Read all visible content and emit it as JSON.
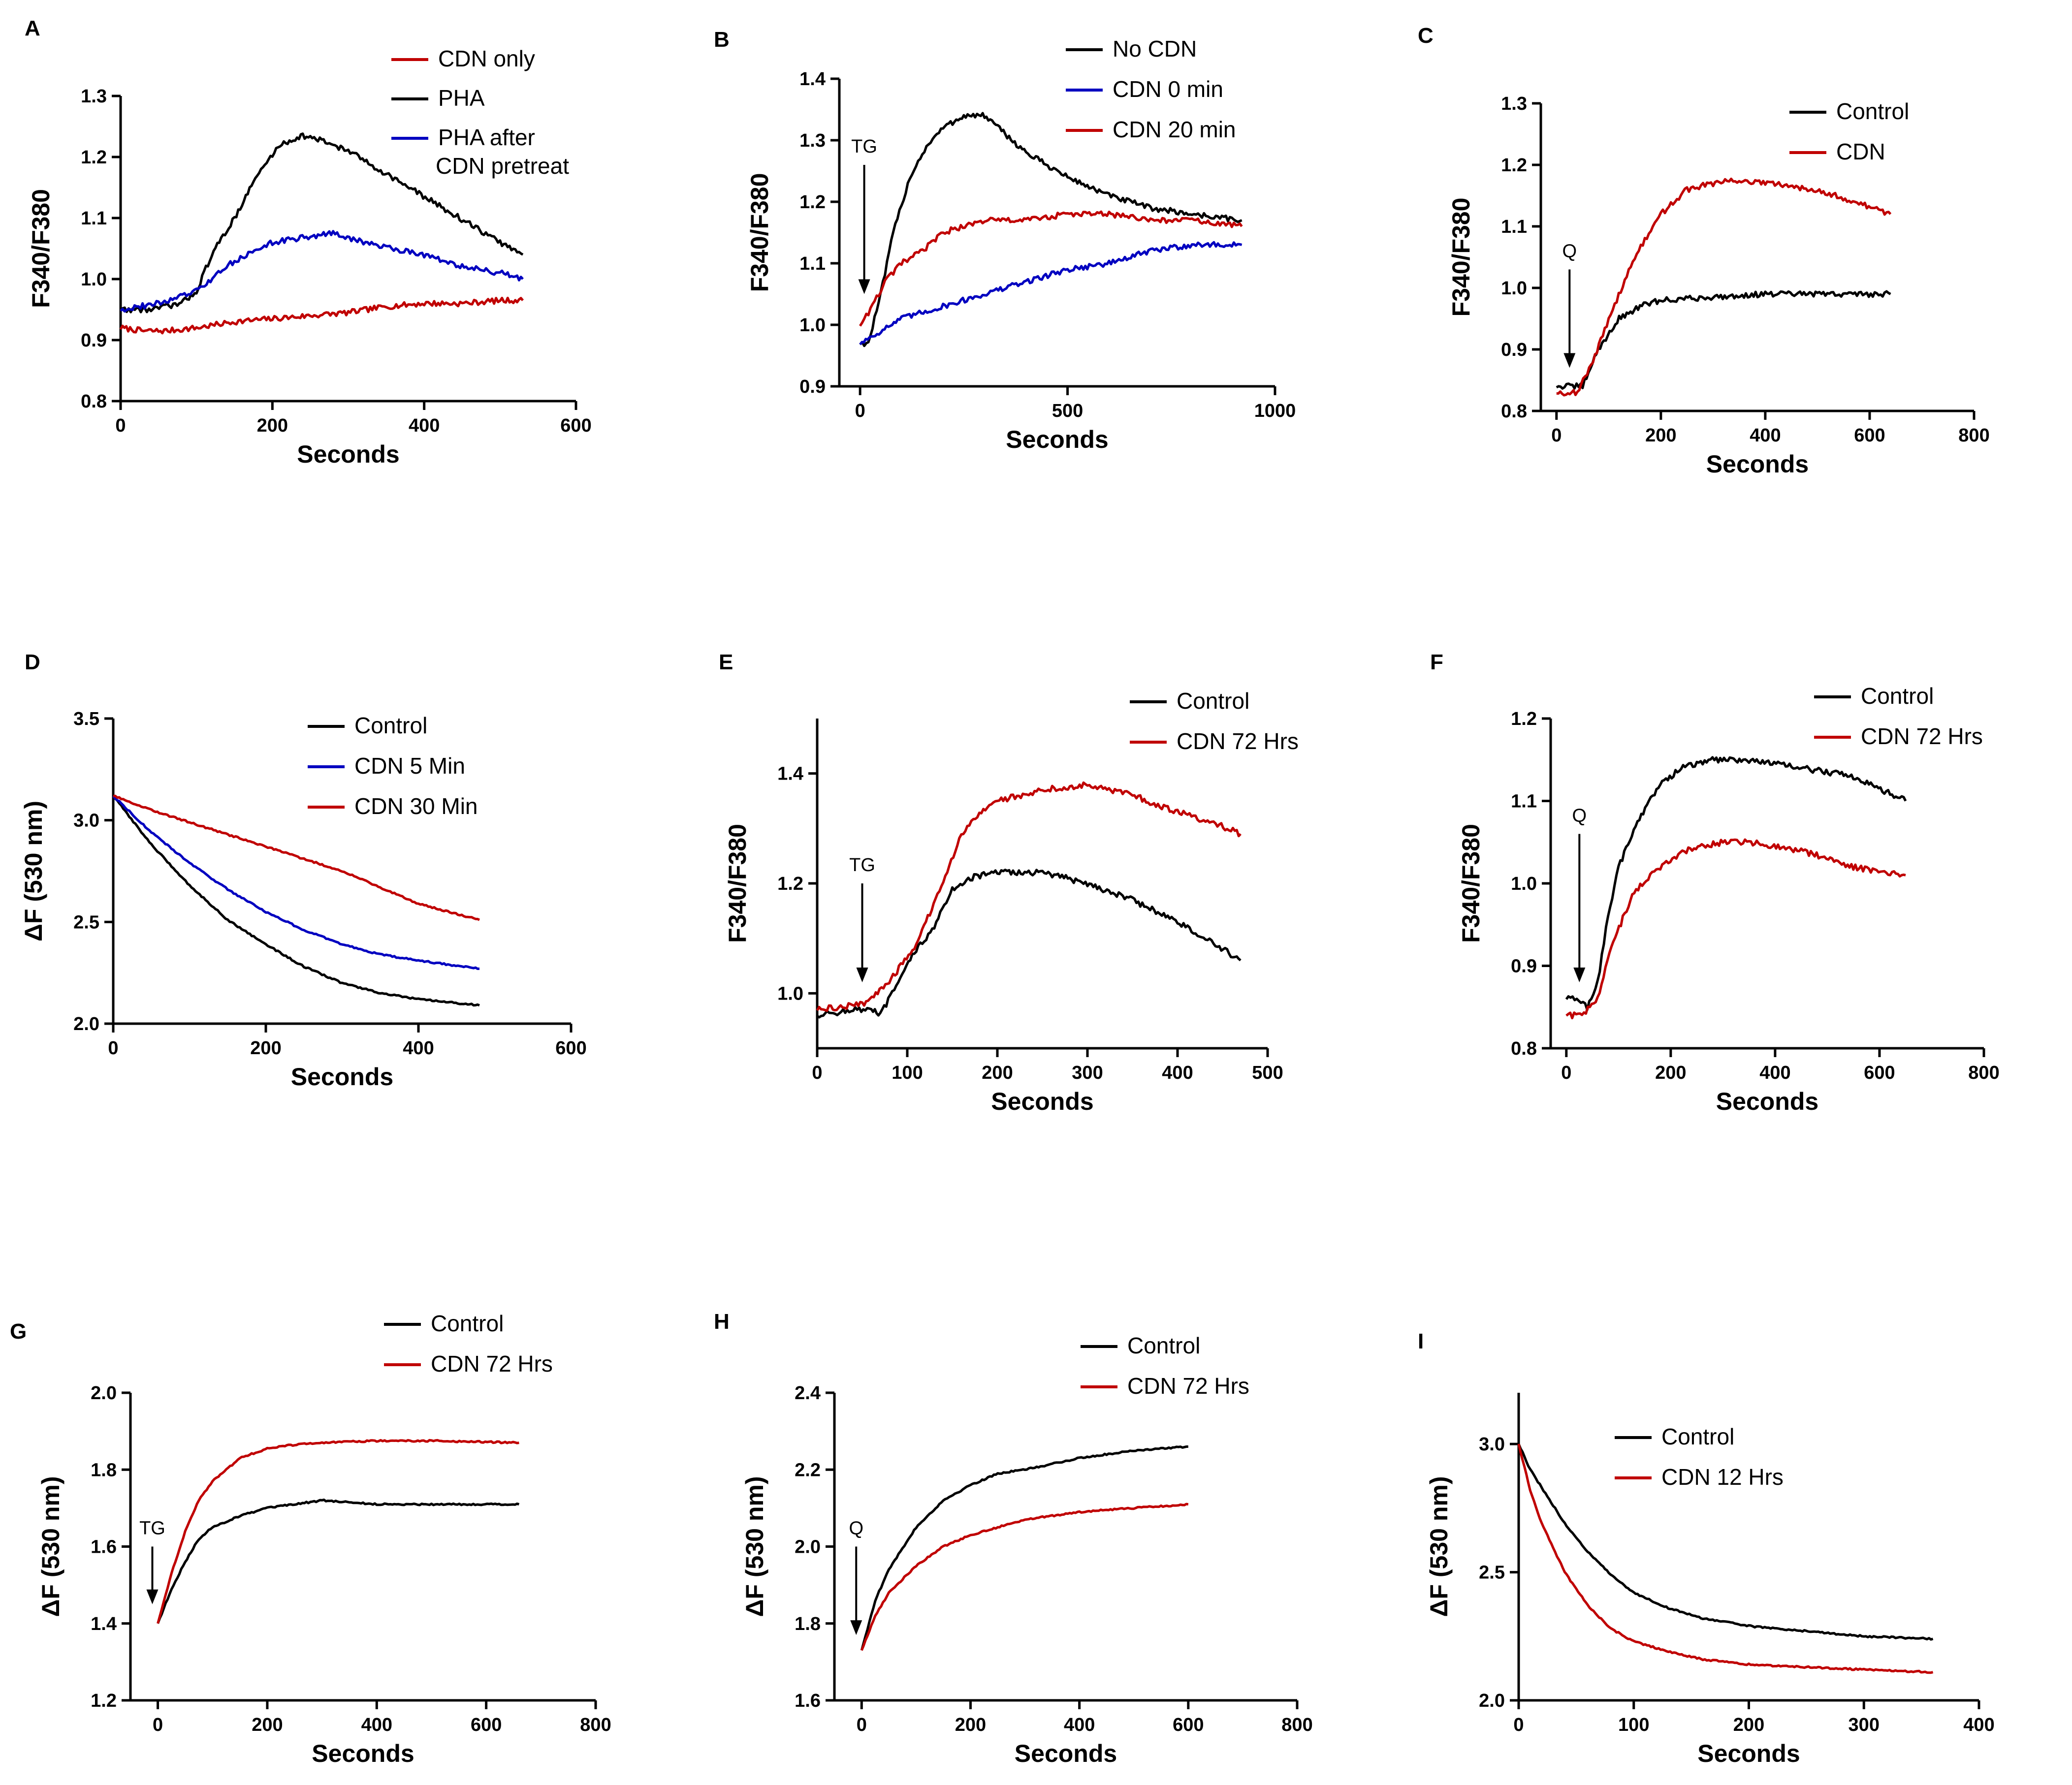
{
  "chart_data": [
    {
      "panel": "A",
      "type": "line",
      "xlabel": "Seconds",
      "ylabel": "F340/F380",
      "xlim": [
        0,
        600
      ],
      "ylim": [
        0.8,
        1.3
      ],
      "xticks": [
        "0",
        "200",
        "400",
        "600"
      ],
      "yticks": [
        "0.8",
        "0.9",
        "1.0",
        "1.1",
        "1.2",
        "1.3"
      ],
      "legend": [
        "CDN only",
        "PHA",
        "PHA after CDN pretreat"
      ],
      "legend_position": "top-right",
      "annotations": [],
      "series": [
        {
          "name": "CDN only",
          "color": "#c00000",
          "x": [
            0,
            30,
            60,
            100,
            150,
            200,
            250,
            300,
            350,
            400,
            450,
            500,
            530
          ],
          "y": [
            0.92,
            0.915,
            0.915,
            0.92,
            0.93,
            0.935,
            0.94,
            0.945,
            0.955,
            0.96,
            0.96,
            0.965,
            0.965
          ]
        },
        {
          "name": "PHA",
          "color": "#000000",
          "x": [
            0,
            40,
            80,
            100,
            120,
            150,
            180,
            210,
            240,
            270,
            300,
            340,
            380,
            420,
            460,
            500,
            530
          ],
          "y": [
            0.95,
            0.95,
            0.96,
            0.98,
            1.04,
            1.1,
            1.17,
            1.22,
            1.235,
            1.225,
            1.21,
            1.18,
            1.15,
            1.12,
            1.09,
            1.06,
            1.04
          ]
        },
        {
          "name": "PHA after CDN pretreat",
          "color": "#0000c0",
          "x": [
            0,
            50,
            100,
            150,
            200,
            250,
            280,
            320,
            360,
            400,
            450,
            500,
            530
          ],
          "y": [
            0.95,
            0.96,
            0.98,
            1.03,
            1.06,
            1.07,
            1.075,
            1.06,
            1.05,
            1.04,
            1.02,
            1.01,
            1.0
          ]
        }
      ]
    },
    {
      "panel": "B",
      "type": "line",
      "xlabel": "Seconds",
      "ylabel": "F340/F380",
      "xlim": [
        -50,
        1000
      ],
      "ylim": [
        0.9,
        1.4
      ],
      "xticks": [
        "0",
        "500",
        "1000"
      ],
      "yticks": [
        "0.9",
        "1.0",
        "1.1",
        "1.2",
        "1.3",
        "1.4"
      ],
      "legend": [
        "No  CDN",
        "CDN 0 min",
        "CDN 20 min"
      ],
      "legend_position": "top-right",
      "annotations": [
        {
          "text": "TG",
          "x": 10,
          "arrow_from": 1.26,
          "arrow_to": 1.05
        }
      ],
      "series": [
        {
          "name": "No  CDN",
          "color": "#000000",
          "x": [
            0,
            20,
            50,
            80,
            120,
            160,
            200,
            250,
            300,
            350,
            400,
            500,
            600,
            700,
            800,
            920
          ],
          "y": [
            0.97,
            0.97,
            1.05,
            1.15,
            1.24,
            1.29,
            1.32,
            1.34,
            1.34,
            1.31,
            1.28,
            1.24,
            1.21,
            1.19,
            1.18,
            1.17
          ]
        },
        {
          "name": "CDN 0 min",
          "color": "#0000c0",
          "x": [
            0,
            50,
            100,
            200,
            300,
            400,
            500,
            600,
            700,
            800,
            920
          ],
          "y": [
            0.97,
            0.99,
            1.01,
            1.03,
            1.05,
            1.07,
            1.09,
            1.1,
            1.12,
            1.13,
            1.13
          ]
        },
        {
          "name": "CDN 20 min",
          "color": "#c00000",
          "x": [
            0,
            30,
            60,
            100,
            150,
            200,
            300,
            400,
            500,
            600,
            700,
            800,
            920
          ],
          "y": [
            1.0,
            1.03,
            1.07,
            1.1,
            1.12,
            1.15,
            1.17,
            1.17,
            1.18,
            1.18,
            1.17,
            1.17,
            1.16
          ]
        }
      ]
    },
    {
      "panel": "C",
      "type": "line",
      "xlabel": "Seconds",
      "ylabel": "F340/F380",
      "xlim": [
        -30,
        800
      ],
      "ylim": [
        0.8,
        1.3
      ],
      "xticks": [
        "0",
        "200",
        "400",
        "600",
        "800"
      ],
      "yticks": [
        "0.8",
        "0.9",
        "1.0",
        "1.1",
        "1.2",
        "1.3"
      ],
      "legend": [
        "Control",
        "CDN"
      ],
      "legend_position": "top-right",
      "annotations": [
        {
          "text": "Q",
          "x": 25,
          "arrow_from": 1.03,
          "arrow_to": 0.87
        }
      ],
      "series": [
        {
          "name": "Control",
          "color": "#000000",
          "x": [
            0,
            50,
            80,
            120,
            160,
            200,
            300,
            400,
            500,
            640
          ],
          "y": [
            0.84,
            0.84,
            0.9,
            0.95,
            0.97,
            0.98,
            0.985,
            0.99,
            0.99,
            0.99
          ]
        },
        {
          "name": "CDN",
          "color": "#c00000",
          "x": [
            0,
            40,
            70,
            100,
            150,
            200,
            250,
            300,
            350,
            400,
            500,
            640
          ],
          "y": [
            0.83,
            0.83,
            0.88,
            0.95,
            1.05,
            1.12,
            1.16,
            1.17,
            1.175,
            1.17,
            1.16,
            1.12
          ]
        }
      ]
    },
    {
      "panel": "D",
      "type": "line",
      "xlabel": "Seconds",
      "ylabel": "ΔF (530 nm)",
      "xlim": [
        0,
        600
      ],
      "ylim": [
        2.0,
        3.5
      ],
      "xticks": [
        "0",
        "200",
        "400",
        "600"
      ],
      "yticks": [
        "2.0",
        "2.5",
        "3.0",
        "3.5"
      ],
      "legend": [
        "Control",
        "CDN 5 Min",
        "CDN 30 Min"
      ],
      "legend_position": "top-right",
      "annotations": [],
      "series": [
        {
          "name": "Control",
          "color": "#000000",
          "x": [
            0,
            50,
            100,
            150,
            200,
            250,
            300,
            350,
            400,
            480
          ],
          "y": [
            3.12,
            2.88,
            2.68,
            2.51,
            2.39,
            2.28,
            2.2,
            2.15,
            2.12,
            2.09
          ]
        },
        {
          "name": "CDN 5 Min",
          "color": "#0000c0",
          "x": [
            0,
            50,
            100,
            150,
            200,
            250,
            300,
            350,
            400,
            480
          ],
          "y": [
            3.12,
            2.94,
            2.79,
            2.66,
            2.55,
            2.46,
            2.39,
            2.34,
            2.31,
            2.27
          ]
        },
        {
          "name": "CDN 30 Min",
          "color": "#c00000",
          "x": [
            0,
            50,
            100,
            150,
            200,
            250,
            300,
            350,
            400,
            480
          ],
          "y": [
            3.12,
            3.05,
            2.99,
            2.93,
            2.87,
            2.81,
            2.75,
            2.67,
            2.59,
            2.51
          ]
        }
      ]
    },
    {
      "panel": "E",
      "type": "line",
      "xlabel": "Seconds",
      "ylabel": "F340/F380",
      "xlim": [
        0,
        500
      ],
      "ylim": [
        0.9,
        1.5
      ],
      "xticks": [
        "0",
        "100",
        "200",
        "300",
        "400",
        "500"
      ],
      "yticks": [
        "1.0",
        "1.2",
        "1.4"
      ],
      "legend": [
        "Control",
        "CDN 72 Hrs"
      ],
      "legend_position": "top-right",
      "annotations": [
        {
          "text": "TG",
          "x": 50,
          "arrow_from": 1.2,
          "arrow_to": 1.02
        }
      ],
      "series": [
        {
          "name": "Control",
          "color": "#000000",
          "x": [
            0,
            40,
            60,
            70,
            90,
            110,
            130,
            150,
            170,
            200,
            250,
            300,
            350,
            400,
            440,
            470
          ],
          "y": [
            0.96,
            0.97,
            0.97,
            0.96,
            1.02,
            1.08,
            1.12,
            1.19,
            1.21,
            1.22,
            1.22,
            1.2,
            1.17,
            1.13,
            1.09,
            1.06
          ]
        },
        {
          "name": "CDN 72 Hrs",
          "color": "#c00000",
          "x": [
            0,
            50,
            80,
            110,
            140,
            160,
            180,
            200,
            250,
            300,
            350,
            400,
            440,
            470
          ],
          "y": [
            0.97,
            0.98,
            1.02,
            1.09,
            1.2,
            1.29,
            1.33,
            1.35,
            1.37,
            1.38,
            1.36,
            1.33,
            1.31,
            1.29
          ]
        }
      ]
    },
    {
      "panel": "F",
      "type": "line",
      "xlabel": "Seconds",
      "ylabel": "F340/F380",
      "xlim": [
        -30,
        800
      ],
      "ylim": [
        0.8,
        1.2
      ],
      "xticks": [
        "0",
        "200",
        "400",
        "600",
        "800"
      ],
      "yticks": [
        "0.8",
        "0.9",
        "1.0",
        "1.1",
        "1.2"
      ],
      "legend": [
        "Control",
        "CDN 72  Hrs"
      ],
      "legend_position": "top-right",
      "annotations": [
        {
          "text": "Q",
          "x": 25,
          "arrow_from": 1.06,
          "arrow_to": 0.88
        }
      ],
      "series": [
        {
          "name": "Control",
          "color": "#000000",
          "x": [
            0,
            20,
            40,
            60,
            80,
            100,
            140,
            180,
            220,
            280,
            350,
            450,
            550,
            650
          ],
          "y": [
            0.86,
            0.86,
            0.85,
            0.88,
            0.96,
            1.02,
            1.08,
            1.12,
            1.14,
            1.15,
            1.15,
            1.14,
            1.13,
            1.1
          ]
        },
        {
          "name": "CDN 72  Hrs",
          "color": "#c00000",
          "x": [
            0,
            30,
            60,
            90,
            130,
            180,
            230,
            300,
            350,
            450,
            550,
            650
          ],
          "y": [
            0.84,
            0.84,
            0.86,
            0.93,
            0.99,
            1.02,
            1.04,
            1.05,
            1.05,
            1.04,
            1.02,
            1.01
          ]
        }
      ]
    },
    {
      "panel": "G",
      "type": "line",
      "xlabel": "Seconds",
      "ylabel": "ΔF (530 nm)",
      "xlim": [
        -50,
        800
      ],
      "ylim": [
        1.2,
        2.0
      ],
      "xticks": [
        "0",
        "200",
        "400",
        "600",
        "800"
      ],
      "yticks": [
        "1.2",
        "1.4",
        "1.6",
        "1.8",
        "2.0"
      ],
      "legend": [
        "Control",
        "CDN 72 Hrs"
      ],
      "legend_position": "top-right",
      "annotations": [
        {
          "text": "TG",
          "x": -10,
          "arrow_from": 1.6,
          "arrow_to": 1.45
        }
      ],
      "series": [
        {
          "name": "Control",
          "color": "#000000",
          "x": [
            0,
            25,
            50,
            75,
            100,
            150,
            200,
            250,
            300,
            400,
            500,
            660
          ],
          "y": [
            1.4,
            1.49,
            1.56,
            1.62,
            1.65,
            1.68,
            1.7,
            1.71,
            1.72,
            1.71,
            1.71,
            1.71
          ]
        },
        {
          "name": "CDN 72 Hrs",
          "color": "#c00000",
          "x": [
            0,
            25,
            50,
            75,
            100,
            150,
            200,
            250,
            300,
            400,
            500,
            660
          ],
          "y": [
            1.4,
            1.53,
            1.64,
            1.72,
            1.77,
            1.83,
            1.855,
            1.865,
            1.87,
            1.875,
            1.875,
            1.87
          ]
        }
      ]
    },
    {
      "panel": "H",
      "type": "line",
      "xlabel": "Seconds",
      "ylabel": "ΔF (530 nm)",
      "xlim": [
        -50,
        800
      ],
      "ylim": [
        1.6,
        2.4
      ],
      "xticks": [
        "0",
        "200",
        "400",
        "600",
        "800"
      ],
      "yticks": [
        "1.6",
        "1.8",
        "2.0",
        "2.2",
        "2.4"
      ],
      "legend": [
        "Control",
        "CDN 72 Hrs"
      ],
      "legend_position": "top-right",
      "annotations": [
        {
          "text": "Q",
          "x": -10,
          "arrow_from": 2.0,
          "arrow_to": 1.77
        }
      ],
      "series": [
        {
          "name": "Control",
          "color": "#000000",
          "x": [
            0,
            25,
            50,
            100,
            150,
            200,
            250,
            300,
            400,
            500,
            600
          ],
          "y": [
            1.73,
            1.86,
            1.94,
            2.05,
            2.12,
            2.16,
            2.19,
            2.2,
            2.23,
            2.25,
            2.26
          ]
        },
        {
          "name": "CDN 72 Hrs",
          "color": "#c00000",
          "x": [
            0,
            25,
            50,
            100,
            150,
            200,
            250,
            300,
            400,
            500,
            600
          ],
          "y": [
            1.73,
            1.82,
            1.88,
            1.95,
            2.0,
            2.03,
            2.05,
            2.07,
            2.09,
            2.1,
            2.11
          ]
        }
      ]
    },
    {
      "panel": "I",
      "type": "line",
      "xlabel": "Seconds",
      "ylabel": "ΔF (530 nm)",
      "xlim": [
        0,
        400
      ],
      "ylim": [
        2.0,
        3.2
      ],
      "xticks": [
        "0",
        "100",
        "200",
        "300",
        "400"
      ],
      "yticks": [
        "2.0",
        "2.5",
        "3.0"
      ],
      "legend": [
        "Control",
        "CDN 12 Hrs"
      ],
      "legend_position": "top-right",
      "annotations": [],
      "series": [
        {
          "name": "Control",
          "color": "#000000",
          "x": [
            0,
            10,
            20,
            40,
            60,
            80,
            100,
            130,
            160,
            200,
            250,
            300,
            360
          ],
          "y": [
            3.0,
            2.9,
            2.83,
            2.69,
            2.58,
            2.49,
            2.42,
            2.36,
            2.32,
            2.29,
            2.27,
            2.25,
            2.24
          ]
        },
        {
          "name": "CDN 12 Hrs",
          "color": "#c00000",
          "x": [
            0,
            10,
            20,
            40,
            60,
            80,
            100,
            130,
            160,
            200,
            250,
            300,
            360
          ],
          "y": [
            3.0,
            2.82,
            2.69,
            2.5,
            2.37,
            2.28,
            2.23,
            2.19,
            2.16,
            2.14,
            2.13,
            2.12,
            2.11
          ]
        }
      ]
    }
  ]
}
